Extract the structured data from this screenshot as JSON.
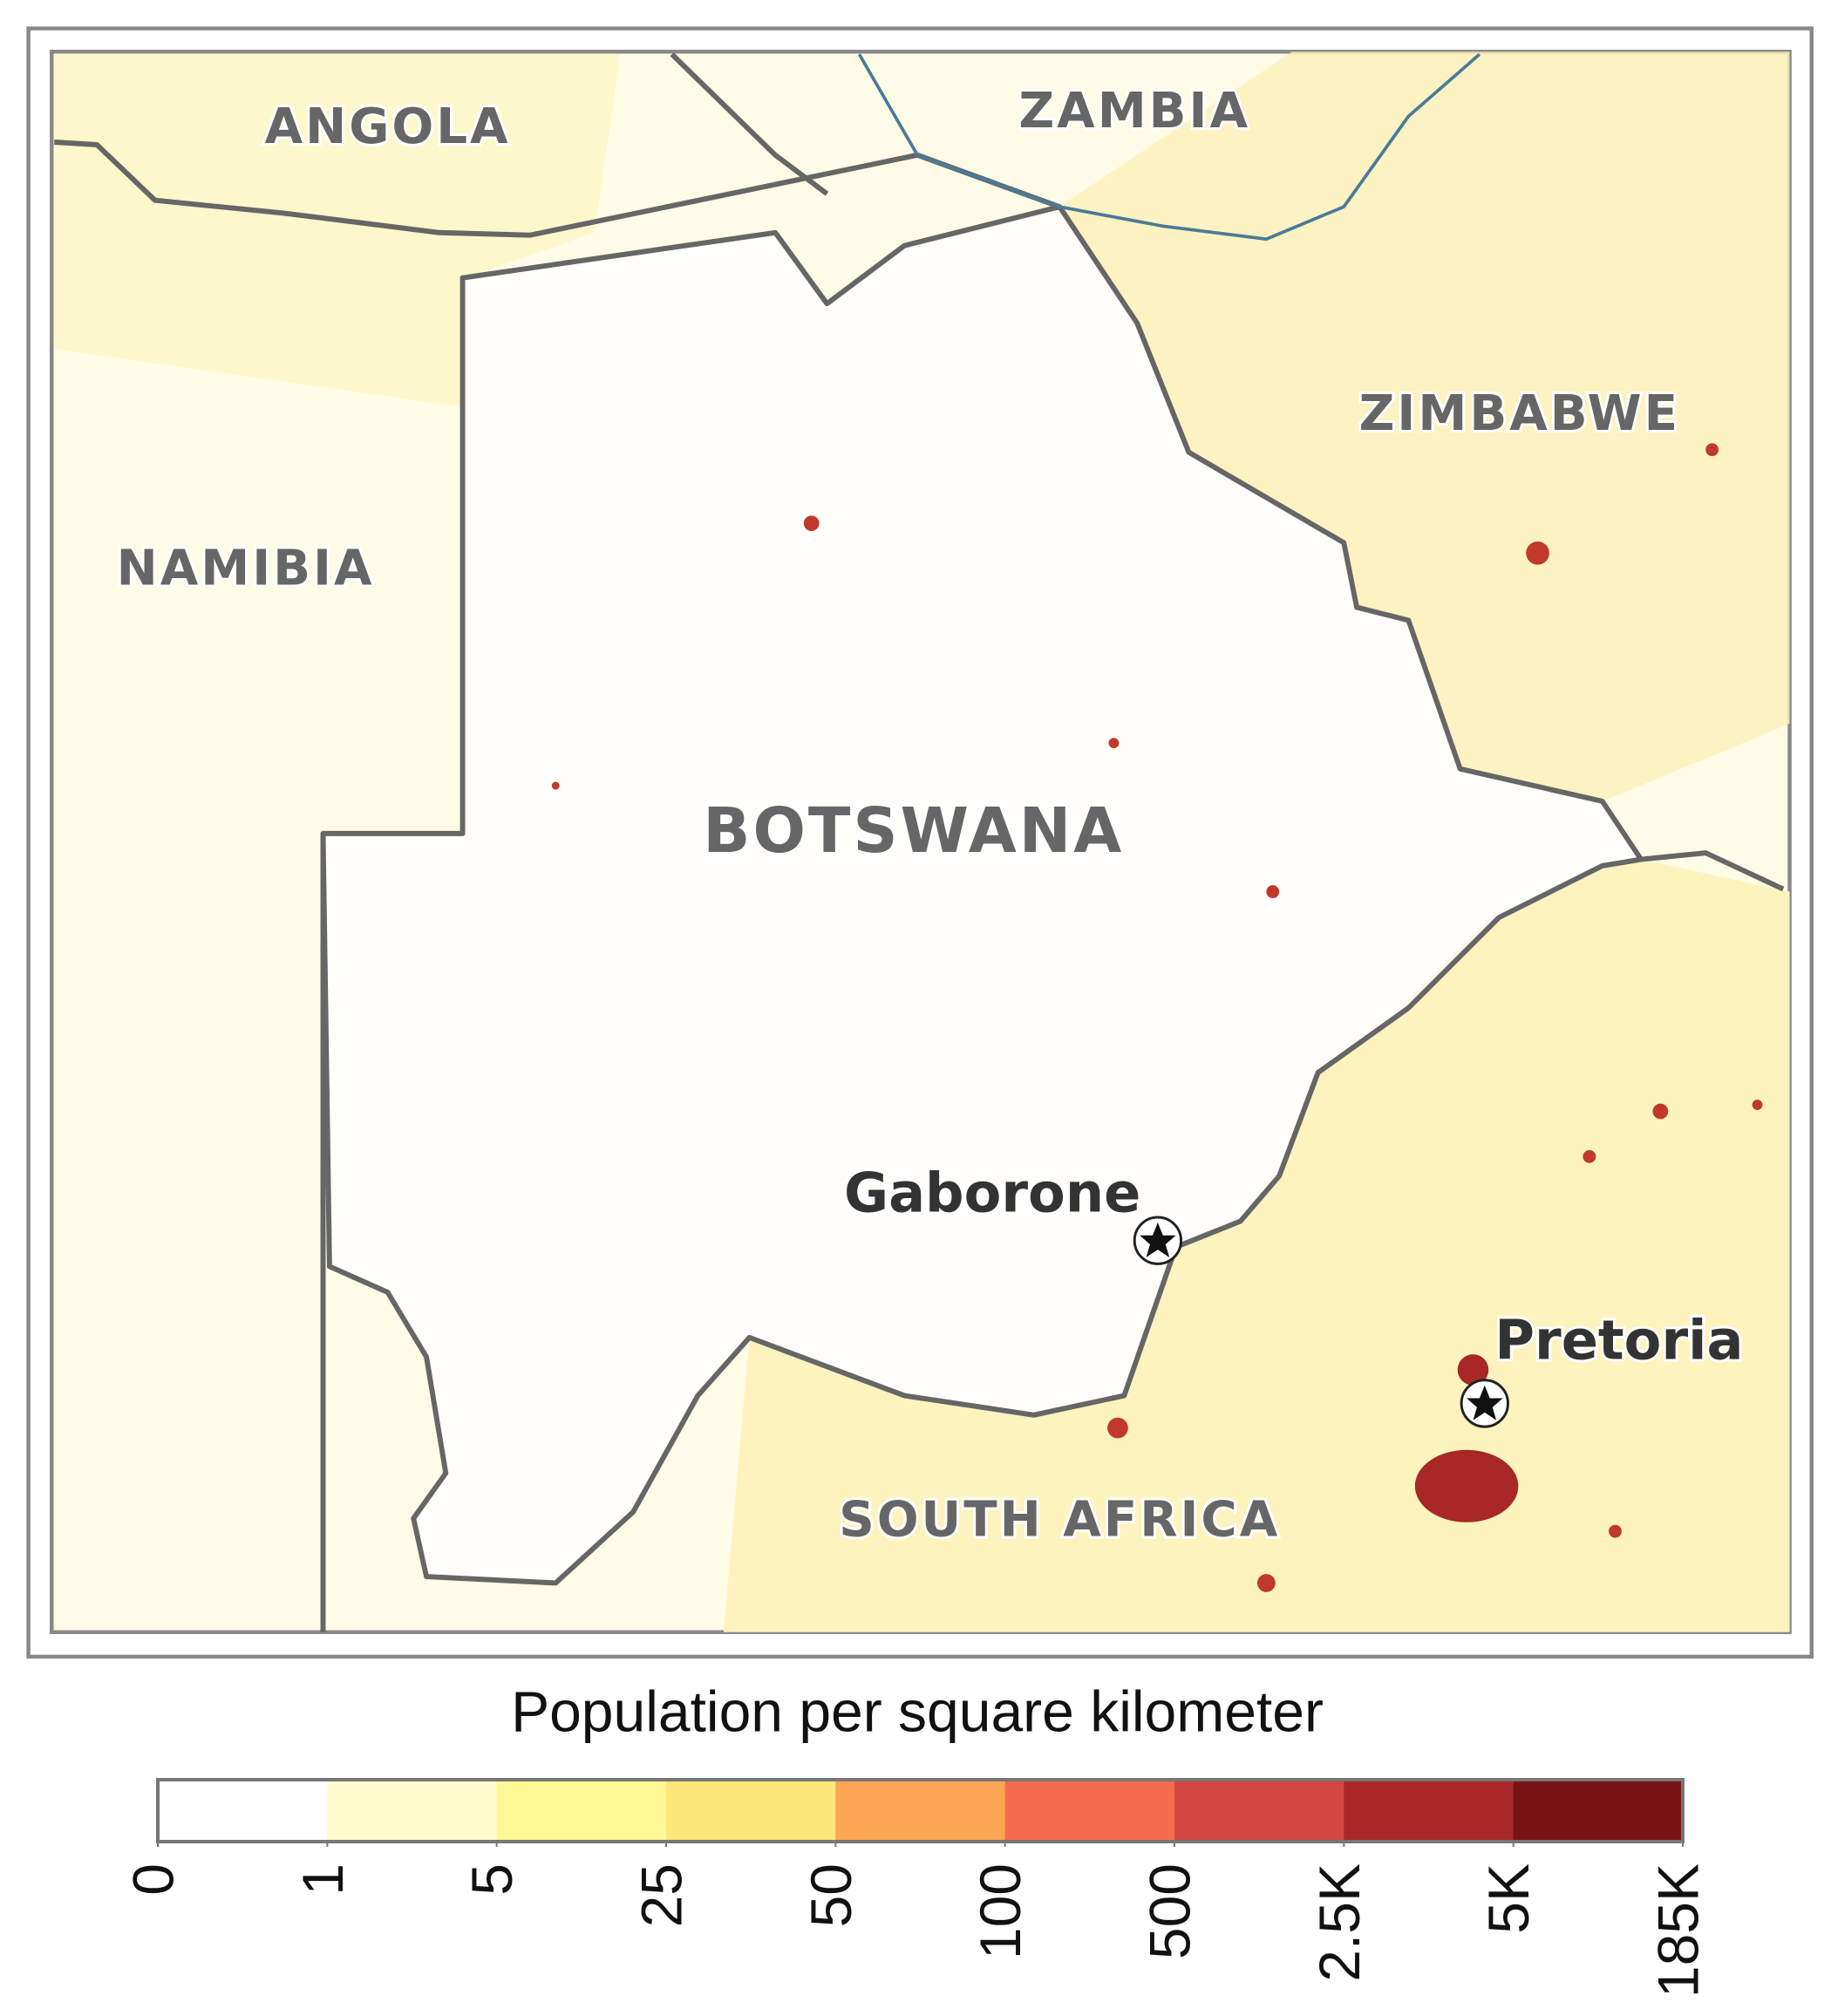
{
  "map": {
    "countries": [
      "ANGOLA",
      "ZAMBIA",
      "ZIMBABWE",
      "NAMIBIA",
      "BOTSWANA",
      "SOUTH AFRICA"
    ],
    "cities": [
      "Gaborone",
      "Pretoria"
    ]
  },
  "legend": {
    "title": "Population per square kilometer",
    "ticks": [
      0,
      1,
      5,
      25,
      50,
      100,
      500,
      {
        "value": 2500,
        "label": "2.5K"
      },
      {
        "value": 5000,
        "label": "5K"
      },
      {
        "value": 185000,
        "label": "185K"
      }
    ],
    "colors": [
      "#ffffff",
      "#fdfbcc",
      "#fdf894",
      "#fde67a",
      "#fca653",
      "#f46c4d",
      "#d24740",
      "#a82727",
      "#7a1313"
    ]
  }
}
